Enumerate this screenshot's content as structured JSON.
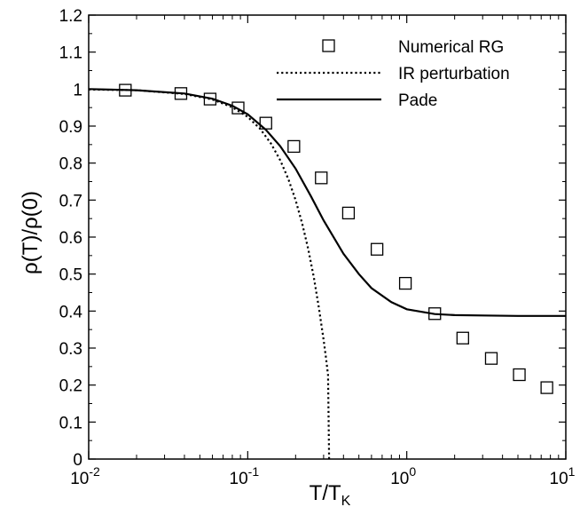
{
  "chart_data": {
    "type": "line",
    "xscale": "log",
    "xlim": [
      0.01,
      10
    ],
    "ylim": [
      0,
      1.2
    ],
    "grid": false,
    "legend_position": "top-right",
    "xlabel": {
      "base": "T/T",
      "subscript": "K"
    },
    "ylabel": "ρ(T)/ρ(0)",
    "x_ticks": [
      {
        "value": 0.01,
        "base": "10",
        "exp": "-2"
      },
      {
        "value": 0.1,
        "base": "10",
        "exp": "-1"
      },
      {
        "value": 1,
        "base": "10",
        "exp": "0"
      },
      {
        "value": 10,
        "base": "10",
        "exp": "1"
      }
    ],
    "y_ticks": [
      {
        "value": 0,
        "label": "0"
      },
      {
        "value": 0.1,
        "label": "0.1"
      },
      {
        "value": 0.2,
        "label": "0.2"
      },
      {
        "value": 0.3,
        "label": "0.3"
      },
      {
        "value": 0.4,
        "label": "0.4"
      },
      {
        "value": 0.5,
        "label": "0.5"
      },
      {
        "value": 0.6,
        "label": "0.6"
      },
      {
        "value": 0.7,
        "label": "0.7"
      },
      {
        "value": 0.8,
        "label": "0.8"
      },
      {
        "value": 0.9,
        "label": "0.9"
      },
      {
        "value": 1,
        "label": "1"
      },
      {
        "value": 1.1,
        "label": "1.1"
      },
      {
        "value": 1.2,
        "label": "1.2"
      }
    ],
    "series": [
      {
        "name": "Numerical RG",
        "style": "markers",
        "marker": "open-square",
        "color": "#000000",
        "x": [
          0.017,
          0.038,
          0.058,
          0.087,
          0.13,
          0.195,
          0.29,
          0.43,
          0.65,
          0.98,
          1.5,
          2.25,
          3.4,
          5.1,
          7.6
        ],
        "y": [
          0.997,
          0.988,
          0.973,
          0.949,
          0.908,
          0.845,
          0.76,
          0.665,
          0.567,
          0.475,
          0.393,
          0.327,
          0.272,
          0.228,
          0.193
        ]
      },
      {
        "name": "IR perturbation",
        "style": "dotted",
        "color": "#000000",
        "x": [
          0.01,
          0.02,
          0.04,
          0.06,
          0.08,
          0.1,
          0.12,
          0.14,
          0.16,
          0.18,
          0.2,
          0.22,
          0.24,
          0.26,
          0.28,
          0.3,
          0.31,
          0.32,
          0.325
        ],
        "y": [
          0.999,
          0.997,
          0.987,
          0.972,
          0.951,
          0.925,
          0.892,
          0.853,
          0.808,
          0.757,
          0.7,
          0.637,
          0.568,
          0.492,
          0.41,
          0.322,
          0.275,
          0.227,
          0.0
        ]
      },
      {
        "name": "Pade",
        "style": "solid",
        "color": "#000000",
        "x": [
          0.01,
          0.02,
          0.04,
          0.06,
          0.08,
          0.1,
          0.13,
          0.16,
          0.2,
          0.25,
          0.3,
          0.4,
          0.5,
          0.6,
          0.8,
          1.0,
          1.5,
          2.0,
          3.0,
          5.0,
          10
        ],
        "y": [
          1.0,
          0.997,
          0.988,
          0.974,
          0.955,
          0.932,
          0.89,
          0.846,
          0.785,
          0.71,
          0.645,
          0.555,
          0.5,
          0.462,
          0.424,
          0.405,
          0.392,
          0.389,
          0.388,
          0.387,
          0.387
        ]
      }
    ]
  }
}
